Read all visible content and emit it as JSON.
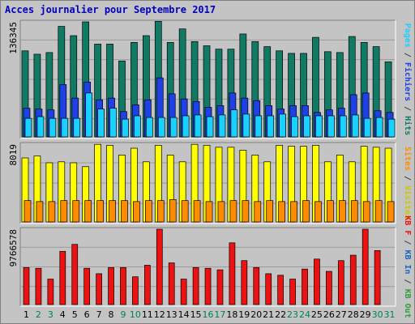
{
  "title": "Acces journalier pour Septembre 2017",
  "chart_data": [
    {
      "type": "bar",
      "panel": "hits-files-pages",
      "ymax_label": "136345",
      "ylim": [
        0,
        136345
      ],
      "categories": [
        "1",
        "2",
        "3",
        "4",
        "5",
        "6",
        "7",
        "8",
        "9",
        "10",
        "11",
        "12",
        "13",
        "14",
        "15",
        "16",
        "17",
        "18",
        "19",
        "20",
        "21",
        "22",
        "23",
        "24",
        "25",
        "26",
        "27",
        "28",
        "29",
        "30",
        "31"
      ],
      "series": [
        {
          "name": "Hits",
          "color": "#117a65",
          "values": [
            102000,
            98000,
            100000,
            131000,
            120000,
            136345,
            110000,
            110000,
            90000,
            112000,
            120000,
            137000,
            112000,
            128000,
            113000,
            108000,
            104000,
            104000,
            122000,
            113000,
            107000,
            102000,
            99000,
            99000,
            118000,
            101000,
            100000,
            119000,
            112000,
            107000,
            89000
          ],
          "value_colors": [
            "#117a65",
            "#117a65",
            "#117a65",
            "#117a65",
            "#117a65",
            "#117a65",
            "#117a65",
            "#117a65",
            "#117a65",
            "#117a65",
            "#117a65",
            "#117a65",
            "#117a65",
            "#117a65",
            "#117a65",
            "#117a65",
            "#117a65",
            "#117a65",
            "#117a65",
            "#117a65",
            "#117a65",
            "#117a65",
            "#117a65",
            "#117a65",
            "#117a65",
            "#117a65",
            "#117a65",
            "#117a65",
            "#117a65",
            "#117a65",
            "#117a65"
          ]
        },
        {
          "name": "Fichiers",
          "color": "#1e40e6",
          "values": [
            34000,
            33000,
            32000,
            62000,
            46000,
            65000,
            44000,
            46000,
            30000,
            38000,
            44000,
            70000,
            51000,
            45000,
            42000,
            35000,
            37000,
            52000,
            46000,
            43000,
            37000,
            33000,
            37000,
            37000,
            29000,
            32000,
            34000,
            50000,
            52000,
            31000,
            29000
          ]
        },
        {
          "name": "Pages",
          "color": "#1ad0ff",
          "values": [
            22000,
            24000,
            22000,
            22000,
            22000,
            52000,
            33000,
            34000,
            21000,
            25000,
            23000,
            23000,
            23000,
            25000,
            26000,
            24000,
            26000,
            32000,
            27000,
            25000,
            25000,
            27000,
            24000,
            25000,
            25000,
            25000,
            25000,
            26000,
            22000,
            23000,
            21000
          ]
        }
      ]
    },
    {
      "type": "bar",
      "panel": "visits-sites",
      "ymax_label": "8019",
      "ylim": [
        0,
        8019
      ],
      "categories": [
        "1",
        "2",
        "3",
        "4",
        "5",
        "6",
        "7",
        "8",
        "9",
        "10",
        "11",
        "12",
        "13",
        "14",
        "15",
        "16",
        "17",
        "18",
        "19",
        "20",
        "21",
        "22",
        "23",
        "24",
        "25",
        "26",
        "27",
        "28",
        "29",
        "30",
        "31"
      ],
      "series": [
        {
          "name": "Visites",
          "color": "#ffff00",
          "values": [
            6600,
            6800,
            6100,
            6200,
            6100,
            5700,
            8000,
            7900,
            6900,
            7600,
            6200,
            7900,
            6900,
            6200,
            8000,
            7900,
            7700,
            7700,
            7400,
            6900,
            6200,
            7900,
            7800,
            7800,
            7900,
            6200,
            6900,
            6200,
            7800,
            7700,
            7600
          ]
        },
        {
          "name": "Sites",
          "color": "#ff8c00",
          "values": [
            2200,
            2100,
            2100,
            2200,
            2200,
            2200,
            2200,
            2200,
            2200,
            2100,
            2200,
            2200,
            2300,
            2200,
            2200,
            2100,
            2100,
            2200,
            2200,
            2100,
            2200,
            2100,
            2100,
            2200,
            2100,
            2200,
            2200,
            2200,
            2100,
            2200,
            2100
          ]
        }
      ]
    },
    {
      "type": "bar",
      "panel": "kbytes",
      "ymax_label": "9766578",
      "ylim": [
        0,
        9766578
      ],
      "categories": [
        "1",
        "2",
        "3",
        "4",
        "5",
        "6",
        "7",
        "8",
        "9",
        "10",
        "11",
        "12",
        "13",
        "14",
        "15",
        "16",
        "17",
        "18",
        "19",
        "20",
        "21",
        "22",
        "23",
        "24",
        "25",
        "26",
        "27",
        "28",
        "29",
        "30",
        "31"
      ],
      "series": [
        {
          "name": "KB F",
          "color": "#ee1111",
          "values": [
            4800000,
            4700000,
            3300000,
            6900000,
            7800000,
            4700000,
            4000000,
            4800000,
            4800000,
            3600000,
            5100000,
            9766578,
            5400000,
            3300000,
            4800000,
            4700000,
            4500000,
            8000000,
            5700000,
            4800000,
            4000000,
            3800000,
            3300000,
            4600000,
            5900000,
            4300000,
            5700000,
            6400000,
            9766578,
            7000000,
            0
          ]
        }
      ],
      "legend": [
        "KB F",
        "KB In",
        "KB Out"
      ],
      "legend_colors": [
        "#ee1111",
        "#1565c0",
        "#2e9d3e"
      ]
    }
  ],
  "right_labels": {
    "panel1": [
      {
        "text": "Pages",
        "color": "#1ad0ff"
      },
      {
        "text": " / ",
        "color": "#444444"
      },
      {
        "text": "Fichiers",
        "color": "#1e40e6"
      },
      {
        "text": " / ",
        "color": "#444444"
      },
      {
        "text": "Hits",
        "color": "#117a65"
      }
    ],
    "panel2": [
      {
        "text": "Sites",
        "color": "#ff8c00"
      },
      {
        "text": " / ",
        "color": "#444444"
      },
      {
        "text": "Visites",
        "color": "#c8c800"
      }
    ],
    "panel3": [
      {
        "text": "KB F",
        "color": "#ee1111"
      },
      {
        "text": " / ",
        "color": "#444444"
      },
      {
        "text": "KB In",
        "color": "#1565c0"
      },
      {
        "text": " / ",
        "color": "#444444"
      },
      {
        "text": "KB Out",
        "color": "#2e9d3e"
      }
    ]
  },
  "x_labels": {
    "days": [
      "1",
      "2",
      "3",
      "4",
      "5",
      "6",
      "7",
      "8",
      "9",
      "10",
      "11",
      "12",
      "13",
      "14",
      "15",
      "16",
      "17",
      "18",
      "19",
      "20",
      "21",
      "22",
      "23",
      "24",
      "25",
      "26",
      "27",
      "28",
      "29",
      "30",
      "31"
    ],
    "weekend_days": [
      "2",
      "3",
      "9",
      "10",
      "16",
      "17",
      "23",
      "24",
      "30",
      "31"
    ],
    "weekday_color": "#000000",
    "weekend_color": "#00805a"
  }
}
